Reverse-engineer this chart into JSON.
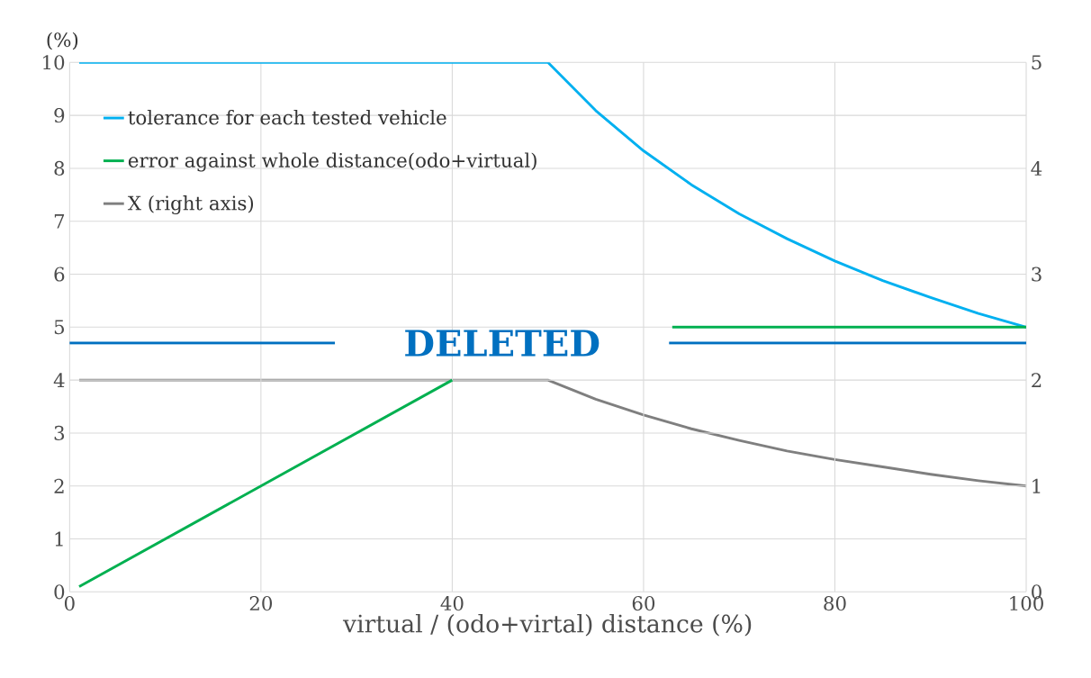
{
  "chart_data": {
    "type": "line",
    "xlabel": "virtual / (odo+virtal) distance (%)",
    "ylabel": "(%)",
    "xlim": [
      0,
      100
    ],
    "xticks": [
      0,
      20,
      40,
      60,
      80,
      100
    ],
    "ylim": [
      0,
      10
    ],
    "yticks": [
      0,
      1,
      2,
      3,
      4,
      5,
      6,
      7,
      8,
      9,
      10
    ],
    "y2lim": [
      0,
      5
    ],
    "y2ticks": [
      0,
      1,
      2,
      3,
      4,
      5
    ],
    "grid": true,
    "legend": "top left",
    "ref_lines": [
      {
        "axis": "y",
        "value": 4.7,
        "label": "DELETED",
        "color": "#0070c0"
      }
    ],
    "series": [
      {
        "name": "tolerance for each tested vehicle",
        "color": "#00b0f0",
        "x": [
          1,
          50,
          55,
          60,
          65,
          70,
          75,
          80,
          85,
          90,
          95,
          100
        ],
        "values": [
          10,
          10,
          9.09,
          8.33,
          7.69,
          7.14,
          6.67,
          6.25,
          5.88,
          5.56,
          5.26,
          5
        ]
      },
      {
        "name": "error against whole distance(odo+virtual)",
        "color": "#00b050",
        "x": [
          1,
          40,
          50,
          63,
          100
        ],
        "values": [
          0.1,
          4,
          null,
          5,
          5
        ]
      },
      {
        "name": "X (right axis)",
        "color": "#7f7f7f",
        "axis": "y2",
        "x": [
          1,
          50,
          55,
          60,
          65,
          70,
          75,
          80,
          85,
          90,
          95,
          100
        ],
        "values": [
          2,
          2,
          1.82,
          1.67,
          1.54,
          1.43,
          1.33,
          1.25,
          1.18,
          1.11,
          1.05,
          1
        ]
      }
    ]
  }
}
